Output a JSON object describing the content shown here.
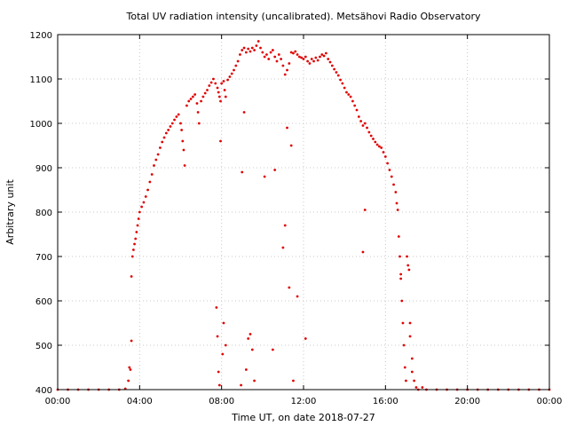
{
  "chart_data": {
    "type": "scatter",
    "title": "Total UV radiation intensity (uncalibrated). Metsähovi Radio Observatory",
    "xlabel": "Time UT, on date 2018-07-27",
    "ylabel": "Arbitrary unit",
    "x_unit": "hours UT",
    "xlim": [
      0,
      24
    ],
    "ylim": [
      400,
      1200
    ],
    "x_ticks": [
      {
        "value": 0,
        "label": "00:00"
      },
      {
        "value": 4,
        "label": "04:00"
      },
      {
        "value": 8,
        "label": "08:00"
      },
      {
        "value": 12,
        "label": "12:00"
      },
      {
        "value": 16,
        "label": "16:00"
      },
      {
        "value": 20,
        "label": "20:00"
      },
      {
        "value": 24,
        "label": "00:00"
      }
    ],
    "y_ticks": [
      {
        "value": 400,
        "label": "400"
      },
      {
        "value": 500,
        "label": "500"
      },
      {
        "value": 600,
        "label": "600"
      },
      {
        "value": 700,
        "label": "700"
      },
      {
        "value": 800,
        "label": "800"
      },
      {
        "value": 900,
        "label": "900"
      },
      {
        "value": 1000,
        "label": "1000"
      },
      {
        "value": 1100,
        "label": "1100"
      },
      {
        "value": 1200,
        "label": "1200"
      }
    ],
    "grid": true,
    "series": [
      {
        "color": "#e00000",
        "points": [
          [
            0.0,
            400
          ],
          [
            0.5,
            400
          ],
          [
            1.0,
            400
          ],
          [
            1.5,
            400
          ],
          [
            2.0,
            400
          ],
          [
            2.5,
            400
          ],
          [
            3.0,
            400
          ],
          [
            3.3,
            402
          ],
          [
            3.45,
            420
          ],
          [
            3.5,
            450
          ],
          [
            3.55,
            445
          ],
          [
            3.6,
            510
          ],
          [
            3.6,
            655
          ],
          [
            3.65,
            700
          ],
          [
            3.7,
            715
          ],
          [
            3.75,
            728
          ],
          [
            3.8,
            740
          ],
          [
            3.85,
            755
          ],
          [
            3.9,
            770
          ],
          [
            3.95,
            785
          ],
          [
            4.0,
            800
          ],
          [
            4.1,
            812
          ],
          [
            4.2,
            822
          ],
          [
            4.3,
            835
          ],
          [
            4.4,
            850
          ],
          [
            4.5,
            868
          ],
          [
            4.6,
            885
          ],
          [
            4.7,
            905
          ],
          [
            4.8,
            918
          ],
          [
            4.9,
            930
          ],
          [
            5.0,
            945
          ],
          [
            5.1,
            958
          ],
          [
            5.2,
            968
          ],
          [
            5.3,
            978
          ],
          [
            5.4,
            985
          ],
          [
            5.5,
            993
          ],
          [
            5.6,
            1000
          ],
          [
            5.7,
            1008
          ],
          [
            5.8,
            1015
          ],
          [
            5.9,
            1020
          ],
          [
            6.0,
            1000
          ],
          [
            6.05,
            985
          ],
          [
            6.1,
            960
          ],
          [
            6.15,
            940
          ],
          [
            6.2,
            905
          ],
          [
            6.3,
            1040
          ],
          [
            6.4,
            1050
          ],
          [
            6.5,
            1055
          ],
          [
            6.6,
            1060
          ],
          [
            6.7,
            1065
          ],
          [
            6.8,
            1045
          ],
          [
            6.85,
            1025
          ],
          [
            6.9,
            1000
          ],
          [
            7.0,
            1050
          ],
          [
            7.1,
            1060
          ],
          [
            7.2,
            1068
          ],
          [
            7.3,
            1075
          ],
          [
            7.4,
            1085
          ],
          [
            7.5,
            1092
          ],
          [
            7.6,
            1100
          ],
          [
            7.7,
            1090
          ],
          [
            7.8,
            1080
          ],
          [
            7.85,
            1070
          ],
          [
            7.9,
            1060
          ],
          [
            7.95,
            1050
          ],
          [
            8.0,
            1090
          ],
          [
            8.1,
            1095
          ],
          [
            8.15,
            1075
          ],
          [
            8.2,
            1060
          ],
          [
            8.3,
            1098
          ],
          [
            8.4,
            1105
          ],
          [
            8.5,
            1112
          ],
          [
            8.6,
            1120
          ],
          [
            8.7,
            1130
          ],
          [
            8.8,
            1140
          ],
          [
            8.9,
            1155
          ],
          [
            9.0,
            1165
          ],
          [
            9.1,
            1170
          ],
          [
            9.2,
            1160
          ],
          [
            9.3,
            1168
          ],
          [
            9.4,
            1162
          ],
          [
            9.5,
            1170
          ],
          [
            9.6,
            1165
          ],
          [
            9.7,
            1175
          ],
          [
            9.8,
            1185
          ],
          [
            9.9,
            1170
          ],
          [
            10.0,
            1160
          ],
          [
            10.1,
            1150
          ],
          [
            10.2,
            1155
          ],
          [
            10.3,
            1145
          ],
          [
            10.4,
            1160
          ],
          [
            10.5,
            1165
          ],
          [
            10.6,
            1150
          ],
          [
            10.7,
            1140
          ],
          [
            10.8,
            1155
          ],
          [
            10.9,
            1145
          ],
          [
            11.0,
            1130
          ],
          [
            11.1,
            1110
          ],
          [
            11.2,
            1120
          ],
          [
            11.3,
            1135
          ],
          [
            11.4,
            1160
          ],
          [
            11.5,
            1158
          ],
          [
            11.6,
            1162
          ],
          [
            11.7,
            1155
          ],
          [
            11.8,
            1150
          ],
          [
            11.9,
            1148
          ],
          [
            12.0,
            1145
          ],
          [
            12.1,
            1150
          ],
          [
            12.2,
            1140
          ],
          [
            12.3,
            1135
          ],
          [
            12.4,
            1145
          ],
          [
            12.5,
            1140
          ],
          [
            12.6,
            1148
          ],
          [
            12.7,
            1142
          ],
          [
            12.8,
            1150
          ],
          [
            12.9,
            1155
          ],
          [
            13.0,
            1152
          ],
          [
            13.1,
            1158
          ],
          [
            13.2,
            1145
          ],
          [
            13.3,
            1138
          ],
          [
            13.4,
            1130
          ],
          [
            13.5,
            1122
          ],
          [
            13.6,
            1115
          ],
          [
            13.7,
            1108
          ],
          [
            13.8,
            1098
          ],
          [
            13.9,
            1090
          ],
          [
            14.0,
            1080
          ],
          [
            14.1,
            1070
          ],
          [
            14.2,
            1065
          ],
          [
            14.3,
            1060
          ],
          [
            14.4,
            1050
          ],
          [
            14.5,
            1040
          ],
          [
            14.6,
            1030
          ],
          [
            14.7,
            1015
          ],
          [
            14.8,
            1005
          ],
          [
            14.9,
            995
          ],
          [
            15.0,
            1000
          ],
          [
            15.1,
            990
          ],
          [
            15.2,
            980
          ],
          [
            15.3,
            972
          ],
          [
            15.4,
            965
          ],
          [
            15.5,
            958
          ],
          [
            15.6,
            952
          ],
          [
            15.7,
            948
          ],
          [
            15.8,
            945
          ],
          [
            15.9,
            935
          ],
          [
            16.0,
            925
          ],
          [
            16.1,
            910
          ],
          [
            16.2,
            895
          ],
          [
            16.3,
            880
          ],
          [
            16.4,
            862
          ],
          [
            16.5,
            845
          ],
          [
            16.55,
            820
          ],
          [
            16.6,
            805
          ],
          [
            16.65,
            745
          ],
          [
            16.7,
            700
          ],
          [
            16.75,
            650
          ],
          [
            16.8,
            600
          ],
          [
            16.85,
            550
          ],
          [
            16.9,
            500
          ],
          [
            16.95,
            450
          ],
          [
            17.0,
            420
          ],
          [
            17.05,
            700
          ],
          [
            17.1,
            680
          ],
          [
            17.15,
            670
          ],
          [
            17.2,
            550
          ],
          [
            17.3,
            440
          ],
          [
            17.4,
            420
          ],
          [
            17.5,
            405
          ],
          [
            17.6,
            400
          ],
          [
            17.8,
            405
          ],
          [
            18.0,
            400
          ],
          [
            18.5,
            400
          ],
          [
            19.0,
            400
          ],
          [
            19.5,
            400
          ],
          [
            20.0,
            400
          ],
          [
            20.5,
            400
          ],
          [
            21.0,
            400
          ],
          [
            21.5,
            400
          ],
          [
            22.0,
            400
          ],
          [
            22.5,
            400
          ],
          [
            23.0,
            400
          ],
          [
            23.5,
            400
          ],
          [
            24.0,
            400
          ],
          [
            7.75,
            585
          ],
          [
            7.8,
            520
          ],
          [
            7.85,
            440
          ],
          [
            7.9,
            410
          ],
          [
            7.95,
            960
          ],
          [
            8.05,
            480
          ],
          [
            8.1,
            550
          ],
          [
            8.2,
            500
          ],
          [
            8.95,
            410
          ],
          [
            9.0,
            890
          ],
          [
            9.1,
            1025
          ],
          [
            9.2,
            445
          ],
          [
            9.3,
            515
          ],
          [
            9.4,
            525
          ],
          [
            9.5,
            490
          ],
          [
            9.6,
            420
          ],
          [
            10.1,
            880
          ],
          [
            10.5,
            490
          ],
          [
            10.6,
            895
          ],
          [
            11.0,
            720
          ],
          [
            11.1,
            770
          ],
          [
            11.2,
            990
          ],
          [
            11.3,
            630
          ],
          [
            11.4,
            950
          ],
          [
            11.5,
            420
          ],
          [
            11.7,
            610
          ],
          [
            12.1,
            515
          ],
          [
            14.9,
            710
          ],
          [
            15.0,
            805
          ],
          [
            16.75,
            660
          ],
          [
            17.2,
            520
          ],
          [
            17.3,
            470
          ]
        ]
      }
    ]
  }
}
